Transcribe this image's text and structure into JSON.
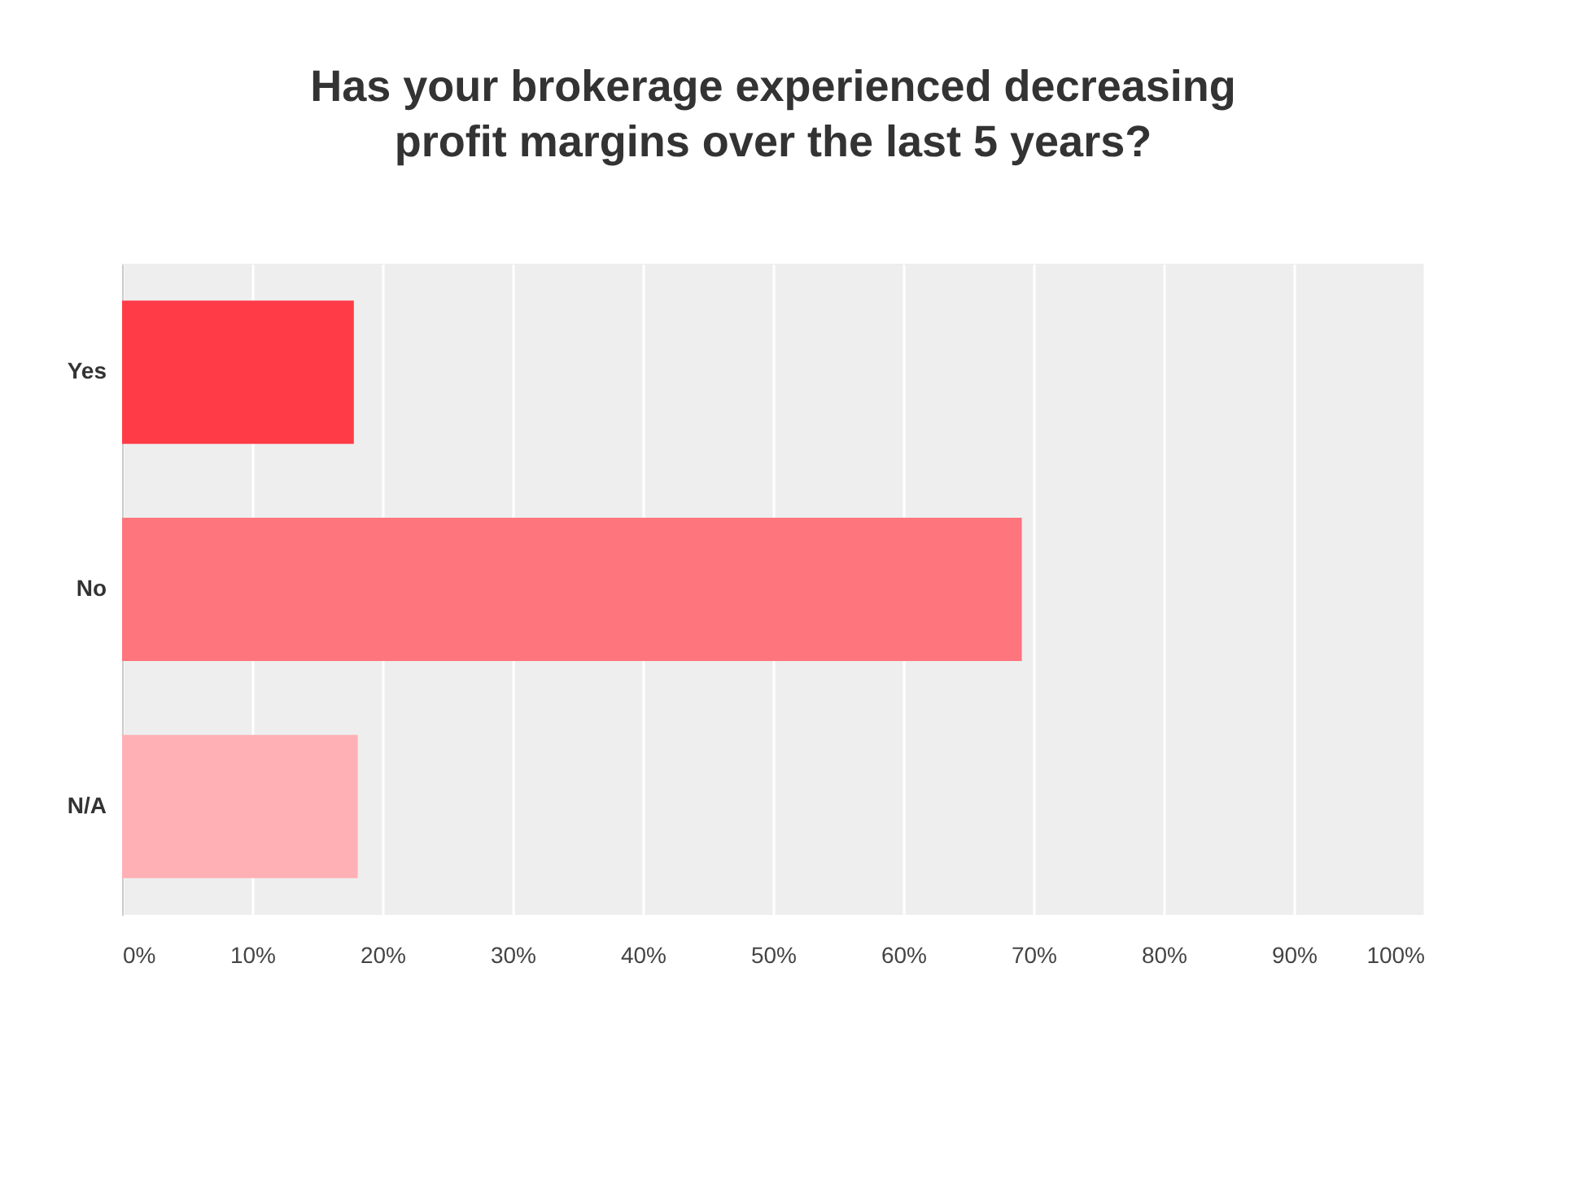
{
  "chart_data": {
    "type": "bar",
    "orientation": "horizontal",
    "title": "Has your brokerage experienced decreasing profit margins over the last 5 years?",
    "categories": [
      "Yes",
      "No",
      "N/A"
    ],
    "values": [
      17.8,
      69.1,
      18.1
    ],
    "colors": [
      "#ff3b47",
      "#ff757d",
      "#ffb0b5"
    ],
    "xlim": [
      0,
      100
    ],
    "xticks": [
      {
        "value": 0,
        "label": "0%"
      },
      {
        "value": 10,
        "label": "10%"
      },
      {
        "value": 20,
        "label": "20%"
      },
      {
        "value": 30,
        "label": "30%"
      },
      {
        "value": 40,
        "label": "40%"
      },
      {
        "value": 50,
        "label": "50%"
      },
      {
        "value": 60,
        "label": "60%"
      },
      {
        "value": 70,
        "label": "70%"
      },
      {
        "value": 80,
        "label": "80%"
      },
      {
        "value": 90,
        "label": "90%"
      },
      {
        "value": 100,
        "label": "100%"
      }
    ],
    "grid": "x"
  }
}
